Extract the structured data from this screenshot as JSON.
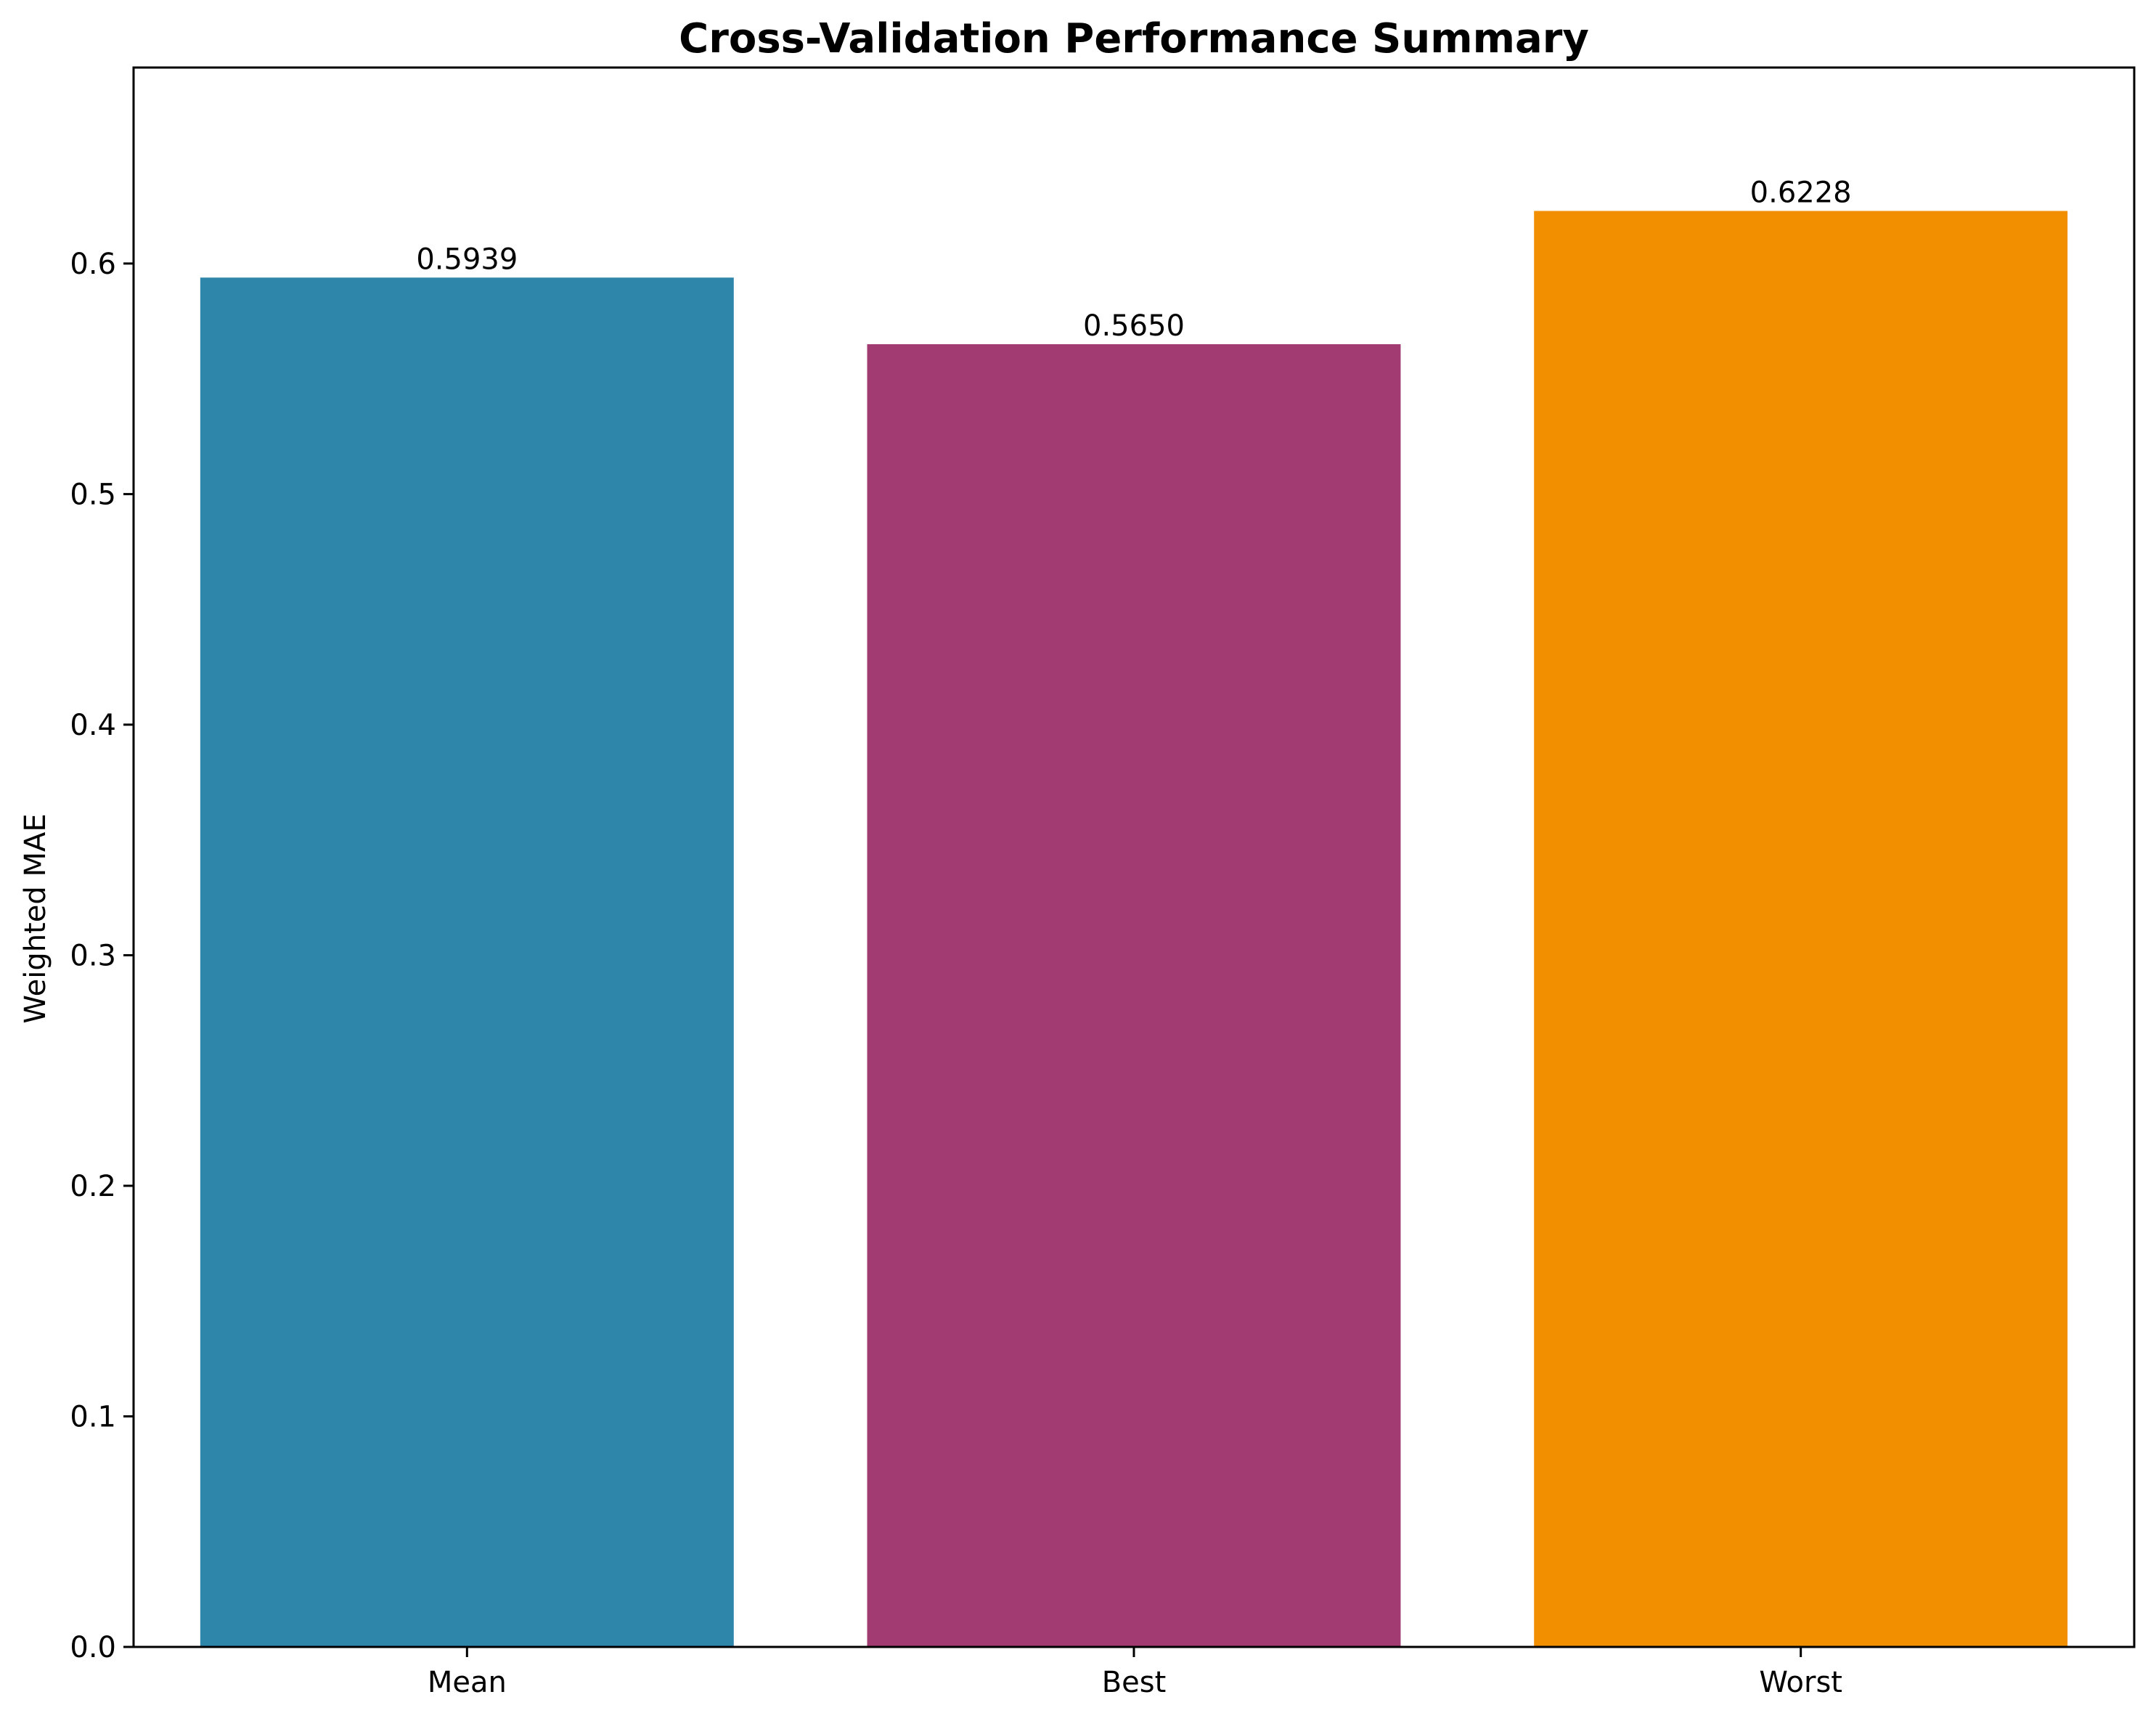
{
  "chart_data": {
    "type": "bar",
    "title": "Cross-Validation Performance Summary",
    "xlabel": "",
    "ylabel": "Weighted MAE",
    "categories": [
      "Mean",
      "Best",
      "Worst"
    ],
    "values": [
      0.5939,
      0.565,
      0.6228
    ],
    "value_labels": [
      "0.5939",
      "0.5650",
      "0.6228"
    ],
    "colors": [
      "#2E86AB",
      "#A23B72",
      "#F18F01"
    ],
    "ylim": [
      0,
      0.685
    ],
    "yticks": [
      0.0,
      0.1,
      0.2,
      0.3,
      0.4,
      0.5,
      0.6
    ],
    "ytick_labels": [
      "0.0",
      "0.1",
      "0.2",
      "0.3",
      "0.4",
      "0.5",
      "0.6"
    ],
    "grid": false,
    "legend": null
  }
}
